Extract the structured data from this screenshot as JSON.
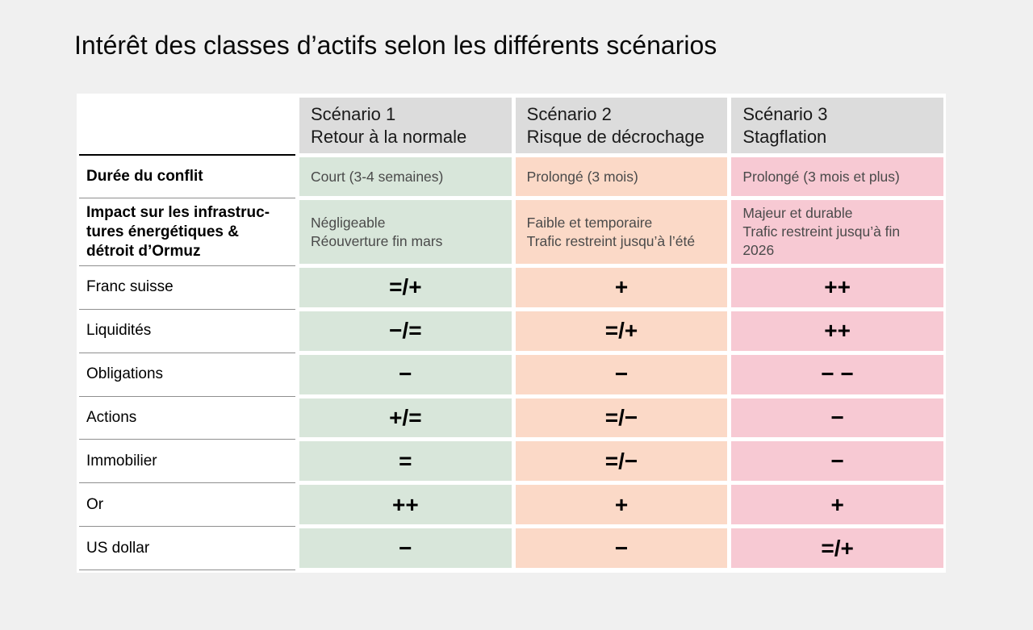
{
  "title": "Intérêt des classes d’actifs selon les différents scénarios",
  "colors": {
    "page_bg": "#f0f0f0",
    "panel_bg": "#ffffff",
    "header_bg": "#dcdcdc",
    "scenario1_bg": "#d8e6da",
    "scenario2_bg": "#fbd9c7",
    "scenario3_bg": "#f7c9d3",
    "label_line": "#8f8f8f",
    "header_line": "#000000",
    "desc_text": "#4a4a4a",
    "title_text": "#0a0a0a"
  },
  "table": {
    "columns": [
      {
        "title_line1": "Scénario 1",
        "title_line2": "Retour à la normale"
      },
      {
        "title_line1": "Scénario 2",
        "title_line2": "Risque de décrochage"
      },
      {
        "title_line1": "Scénario 3",
        "title_line2": "Stagflation"
      }
    ],
    "info_rows": [
      {
        "label_lines": [
          "Durée du conflit"
        ],
        "cells": [
          [
            "Court (3-4 semaines)"
          ],
          [
            "Prolongé (3 mois)"
          ],
          [
            "Prolongé (3 mois et plus)"
          ]
        ]
      },
      {
        "label_lines": [
          "Impact sur les infrastruc-",
          "tures énergétiques &",
          "détroit d’Ormuz"
        ],
        "cells": [
          [
            "Négligeable",
            "Réouverture fin mars"
          ],
          [
            "Faible et temporaire",
            "Trafic restreint jusqu’à l’été"
          ],
          [
            "Majeur et durable",
            "Trafic restreint jusqu’à fin",
            "2026"
          ]
        ]
      }
    ],
    "asset_rows": [
      {
        "label": "Franc suisse",
        "cells": [
          "=/+",
          "+",
          "++"
        ]
      },
      {
        "label": "Liquidités",
        "cells": [
          "−/=",
          "=/+",
          "++"
        ]
      },
      {
        "label": "Obligations",
        "cells": [
          "−",
          "−",
          "− −"
        ]
      },
      {
        "label": "Actions",
        "cells": [
          "+/=",
          "=/−",
          "−"
        ]
      },
      {
        "label": "Immobilier",
        "cells": [
          "=",
          "=/−",
          "−"
        ]
      },
      {
        "label": "Or",
        "cells": [
          "++",
          "+",
          "+"
        ]
      },
      {
        "label": "US dollar",
        "cells": [
          "−",
          "−",
          "=/+"
        ]
      }
    ]
  },
  "chart_data": {
    "type": "table",
    "title": "Intérêt des classes d’actifs selon les différents scénarios",
    "columns": [
      "",
      "Scénario 1 — Retour à la normale",
      "Scénario 2 — Risque de décrochage",
      "Scénario 3 — Stagflation"
    ],
    "rows": [
      [
        "Durée du conflit",
        "Court (3-4 semaines)",
        "Prolongé (3 mois)",
        "Prolongé (3 mois et plus)"
      ],
      [
        "Impact sur les infrastructures énergétiques & détroit d’Ormuz",
        "Négligeable Réouverture fin mars",
        "Faible et temporaire Trafic restreint jusqu’à l’été",
        "Majeur et durable Trafic restreint jusqu’à fin 2026"
      ],
      [
        "Franc suisse",
        "=/+",
        "+",
        "++"
      ],
      [
        "Liquidités",
        "−/=",
        "=/+",
        "++"
      ],
      [
        "Obligations",
        "−",
        "−",
        "− −"
      ],
      [
        "Actions",
        "+/=",
        "=/−",
        "−"
      ],
      [
        "Immobilier",
        "=",
        "=/−",
        "−"
      ],
      [
        "Or",
        "++",
        "+",
        "+"
      ],
      [
        "US dollar",
        "−",
        "−",
        "=/+"
      ]
    ],
    "legend_position": "none",
    "column_colors": [
      "#ffffff",
      "#d8e6da",
      "#fbd9c7",
      "#f7c9d3"
    ]
  }
}
